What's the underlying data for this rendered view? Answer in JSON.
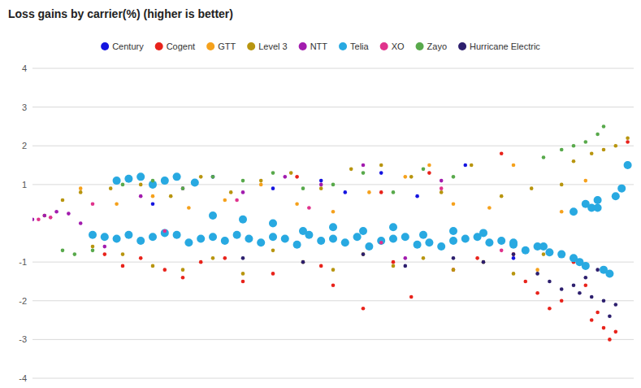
{
  "chart_data": {
    "type": "scatter",
    "title": "Loss gains by carrier(%) (higher is better)",
    "xlim": [
      0,
      100
    ],
    "ylim": [
      -4,
      4
    ],
    "yticks": [
      4,
      3,
      2,
      1,
      -1,
      -2,
      -3,
      -4
    ],
    "grid": true,
    "legend": "top",
    "tick_labels": "y",
    "series": [
      {
        "name": "Century",
        "color": "#1515e0",
        "marker": "circle",
        "x": [
          20,
          30,
          40,
          48,
          52,
          58,
          64,
          72,
          80
        ],
        "values": [
          0.5,
          1.2,
          0.9,
          1.1,
          0.8,
          1.3,
          0.7,
          1.5,
          -0.9
        ]
      },
      {
        "name": "Cogent",
        "color": "#e8231b",
        "marker": "circle",
        "x": [
          12,
          15,
          18,
          22,
          25,
          28,
          32,
          35,
          40,
          44,
          48,
          50,
          55,
          58,
          60,
          63,
          66,
          70,
          74,
          78,
          80,
          82,
          84,
          86,
          88,
          90,
          92,
          93,
          94,
          95,
          96,
          97,
          99
        ],
        "values": [
          -0.8,
          -1.1,
          -0.9,
          -1.2,
          -1.4,
          -1.0,
          -0.9,
          -1.5,
          -1.3,
          1.2,
          -1.1,
          -1.6,
          -2.2,
          0.8,
          -1.0,
          -1.9,
          1.3,
          -1.2,
          -0.9,
          1.8,
          -0.8,
          -1.5,
          -1.8,
          -2.2,
          -2.0,
          -1.0,
          -1.6,
          -2.5,
          -2.3,
          -2.7,
          -3.0,
          -2.8,
          2.1
        ]
      },
      {
        "name": "GTT",
        "color": "#f5a11c",
        "marker": "circle",
        "x": [
          8,
          14,
          20,
          26,
          32,
          38,
          44,
          50,
          56,
          62,
          66,
          70,
          76,
          80,
          84,
          88,
          92
        ],
        "values": [
          0.9,
          0.5,
          0.7,
          0.4,
          0.6,
          1.0,
          0.5,
          0.3,
          0.8,
          1.2,
          1.5,
          0.5,
          0.4,
          1.5,
          -1.2,
          0.3,
          1.1
        ]
      },
      {
        "name": "Level 3",
        "color": "#b8950f",
        "marker": "circle",
        "x": [
          2,
          5,
          8,
          10,
          13,
          15,
          18,
          20,
          23,
          25,
          28,
          30,
          33,
          35,
          38,
          40,
          43,
          45,
          48,
          50,
          53,
          55,
          58,
          60,
          63,
          65,
          68,
          70,
          73,
          75,
          78,
          80,
          83,
          85,
          88,
          90,
          93,
          95,
          97,
          99
        ],
        "values": [
          0.2,
          0.6,
          0.8,
          -0.6,
          0.9,
          -0.8,
          1.0,
          -1.1,
          0.7,
          -1.2,
          1.2,
          -0.9,
          0.8,
          -1.3,
          1.1,
          -0.7,
          1.3,
          -1.0,
          0.9,
          -1.2,
          1.4,
          -0.8,
          1.5,
          -1.1,
          1.2,
          -0.9,
          0.8,
          -1.2,
          1.5,
          -1.0,
          0.7,
          -1.3,
          0.9,
          -0.8,
          1.0,
          1.6,
          1.8,
          1.9,
          2.0,
          2.2
        ]
      },
      {
        "name": "NTT",
        "color": "#a21cae",
        "marker": "circle",
        "x": [
          0,
          2,
          4,
          6,
          8,
          12,
          18,
          25,
          35,
          42,
          48,
          55,
          62,
          68
        ],
        "values": [
          0.1,
          0.2,
          0.3,
          0.25,
          0.0,
          -0.6,
          0.7,
          0.9,
          0.8,
          1.2,
          1.0,
          1.5,
          -0.9,
          1.1
        ]
      },
      {
        "name": "Telia",
        "color": "#28a9e1",
        "marker": "large-circle",
        "x": [
          10,
          12,
          14,
          16,
          18,
          20,
          22,
          24,
          26,
          28,
          30,
          32,
          34,
          36,
          38,
          40,
          42,
          44,
          46,
          48,
          50,
          52,
          54,
          56,
          58,
          60,
          62,
          64,
          66,
          68,
          70,
          72,
          74,
          76,
          78,
          80,
          82,
          84,
          86,
          88,
          90,
          91,
          92,
          93,
          94,
          95,
          96,
          97,
          98,
          99,
          14,
          16,
          18,
          20,
          22,
          24,
          27,
          30,
          35,
          40,
          45,
          50,
          55,
          60,
          65,
          70,
          75,
          80,
          85,
          90,
          92,
          94
        ],
        "values": [
          -0.3,
          -0.35,
          -0.4,
          -0.3,
          -0.45,
          -0.35,
          -0.25,
          -0.3,
          -0.5,
          -0.4,
          -0.35,
          -0.45,
          -0.3,
          -0.4,
          -0.5,
          -0.35,
          -0.4,
          -0.55,
          -0.3,
          -0.45,
          -0.4,
          -0.5,
          -0.35,
          -0.6,
          -0.45,
          -0.4,
          -0.35,
          -0.55,
          -0.5,
          -0.6,
          -0.45,
          -0.4,
          -0.35,
          -0.5,
          -0.45,
          -0.55,
          -0.7,
          -0.6,
          -0.75,
          -0.8,
          -0.9,
          -1.0,
          -1.1,
          0.4,
          0.6,
          -1.2,
          -1.3,
          0.7,
          0.9,
          1.5,
          1.1,
          1.15,
          1.2,
          1.0,
          1.1,
          1.2,
          1.05,
          0.2,
          0.1,
          0.0,
          -0.2,
          -0.1,
          -0.2,
          -0.1,
          -0.3,
          -0.2,
          -0.25,
          -0.5,
          -0.6,
          0.3,
          0.5,
          0.4
        ]
      },
      {
        "name": "XO",
        "color": "#e0338c",
        "marker": "circle",
        "x": [
          1,
          3,
          10,
          22,
          34,
          46,
          58,
          68,
          78
        ],
        "values": [
          0.1,
          0.15,
          0.5,
          -0.2,
          0.6,
          0.4,
          -0.5,
          0.9,
          -0.7
        ]
      },
      {
        "name": "Zayo",
        "color": "#58a94b",
        "marker": "circle",
        "x": [
          5,
          7,
          10,
          15,
          20,
          25,
          30,
          35,
          40,
          45,
          50,
          55,
          60,
          65,
          70,
          85,
          88,
          90,
          92,
          94,
          95
        ],
        "values": [
          -0.7,
          -0.8,
          -0.7,
          1.0,
          1.1,
          0.9,
          1.2,
          1.1,
          1.3,
          0.9,
          1.0,
          1.3,
          0.8,
          1.4,
          1.2,
          1.7,
          1.9,
          2.0,
          2.1,
          2.3,
          2.5
        ]
      },
      {
        "name": "Hurricane Electric",
        "color": "#2d1f6e",
        "marker": "circle",
        "x": [
          35,
          45,
          55,
          62,
          70,
          75,
          80,
          84,
          86,
          88,
          90,
          91,
          92,
          93,
          94,
          95,
          96,
          97
        ],
        "values": [
          -0.9,
          -1.0,
          -0.8,
          -1.1,
          -0.9,
          -1.0,
          -0.8,
          -1.3,
          -1.5,
          -1.7,
          -1.6,
          -1.8,
          -1.4,
          -1.9,
          -1.2,
          -2.0,
          -2.4,
          -2.1
        ]
      }
    ]
  }
}
